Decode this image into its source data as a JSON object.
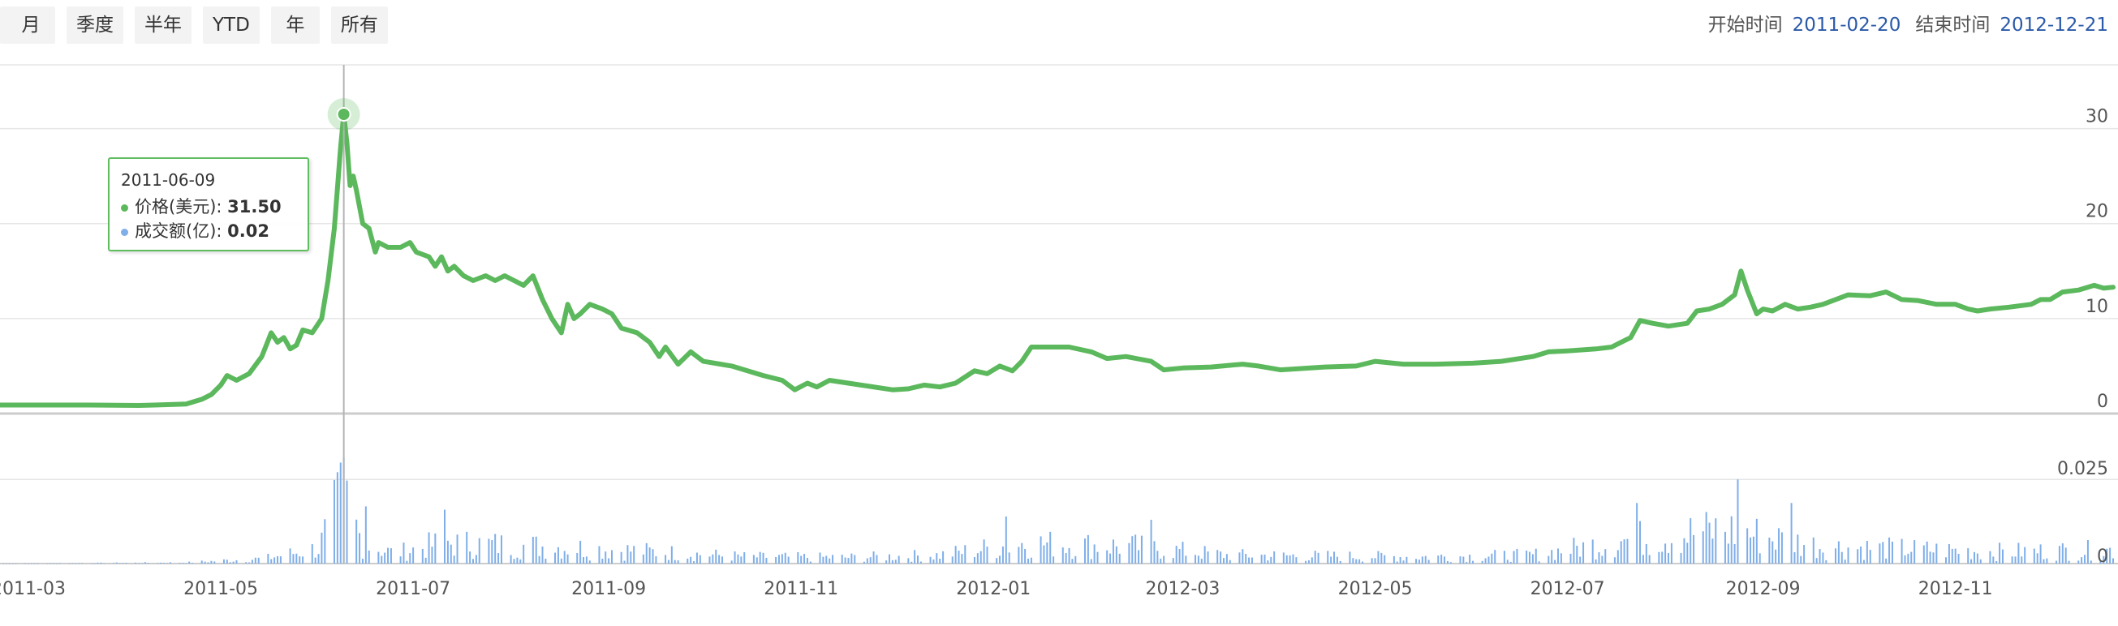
{
  "range_selector": {
    "buttons": [
      "月",
      "季度",
      "半年",
      "YTD",
      "年",
      "所有"
    ]
  },
  "date_range": {
    "start_label": "开始时间",
    "start_value": "2011-02-20",
    "end_label": "结束时间",
    "end_value": "2012-12-21"
  },
  "tooltip": {
    "date": "2011-06-09",
    "price_label": "价格(美元):",
    "price_value": "31.50",
    "volume_label": "成交额(亿):",
    "volume_value": "0.02"
  },
  "colors": {
    "price_line": "#5cb85c",
    "volume_bar": "#7faee8",
    "grid": "#e6e6e6",
    "axis_text": "#555555",
    "date_link": "#2b5aa8"
  },
  "chart_data": [
    {
      "type": "line",
      "title": "",
      "ylabel": "价格(美元)",
      "y_ticks": [
        0,
        10,
        20,
        30
      ],
      "ylim": [
        0,
        35
      ],
      "x_start": "2011-02-20",
      "x_end": "2012-12-21",
      "x_ticks": [
        "2011-03",
        "2011-05",
        "2011-07",
        "2011-09",
        "2011-11",
        "2012-01",
        "2012-03",
        "2012-05",
        "2012-07",
        "2012-09",
        "2012-11"
      ],
      "highlight": {
        "date": "2011-06-09",
        "value": 31.5
      },
      "points": [
        [
          "2011-02-20",
          0.9
        ],
        [
          "2011-03-01",
          0.9
        ],
        [
          "2011-03-20",
          0.9
        ],
        [
          "2011-04-05",
          0.85
        ],
        [
          "2011-04-10",
          0.9
        ],
        [
          "2011-04-20",
          1.0
        ],
        [
          "2011-04-25",
          1.5
        ],
        [
          "2011-04-28",
          2.0
        ],
        [
          "2011-05-01",
          3.0
        ],
        [
          "2011-05-03",
          4.0
        ],
        [
          "2011-05-06",
          3.5
        ],
        [
          "2011-05-10",
          4.2
        ],
        [
          "2011-05-14",
          6.0
        ],
        [
          "2011-05-17",
          8.5
        ],
        [
          "2011-05-19",
          7.5
        ],
        [
          "2011-05-21",
          8.0
        ],
        [
          "2011-05-23",
          6.8
        ],
        [
          "2011-05-25",
          7.2
        ],
        [
          "2011-05-27",
          8.8
        ],
        [
          "2011-05-30",
          8.5
        ],
        [
          "2011-06-02",
          10.0
        ],
        [
          "2011-06-04",
          14.0
        ],
        [
          "2011-06-06",
          19.5
        ],
        [
          "2011-06-08",
          28.0
        ],
        [
          "2011-06-09",
          31.5
        ],
        [
          "2011-06-10",
          28.5
        ],
        [
          "2011-06-11",
          24.0
        ],
        [
          "2011-06-12",
          25.0
        ],
        [
          "2011-06-13",
          23.5
        ],
        [
          "2011-06-15",
          20.0
        ],
        [
          "2011-06-17",
          19.5
        ],
        [
          "2011-06-19",
          17.0
        ],
        [
          "2011-06-20",
          18.0
        ],
        [
          "2011-06-23",
          17.5
        ],
        [
          "2011-06-27",
          17.5
        ],
        [
          "2011-06-30",
          18.0
        ],
        [
          "2011-07-02",
          17.0
        ],
        [
          "2011-07-06",
          16.5
        ],
        [
          "2011-07-08",
          15.5
        ],
        [
          "2011-07-10",
          16.5
        ],
        [
          "2011-07-12",
          15.0
        ],
        [
          "2011-07-14",
          15.5
        ],
        [
          "2011-07-17",
          14.5
        ],
        [
          "2011-07-20",
          14.0
        ],
        [
          "2011-07-24",
          14.5
        ],
        [
          "2011-07-27",
          14.0
        ],
        [
          "2011-07-30",
          14.5
        ],
        [
          "2011-08-02",
          14.0
        ],
        [
          "2011-08-05",
          13.5
        ],
        [
          "2011-08-08",
          14.5
        ],
        [
          "2011-08-11",
          12.0
        ],
        [
          "2011-08-14",
          10.0
        ],
        [
          "2011-08-17",
          8.5
        ],
        [
          "2011-08-19",
          11.5
        ],
        [
          "2011-08-21",
          10.0
        ],
        [
          "2011-08-23",
          10.5
        ],
        [
          "2011-08-26",
          11.5
        ],
        [
          "2011-08-30",
          11.0
        ],
        [
          "2011-09-02",
          10.5
        ],
        [
          "2011-09-05",
          9.0
        ],
        [
          "2011-09-10",
          8.5
        ],
        [
          "2011-09-14",
          7.5
        ],
        [
          "2011-09-17",
          6.0
        ],
        [
          "2011-09-19",
          7.0
        ],
        [
          "2011-09-23",
          5.2
        ],
        [
          "2011-09-27",
          6.5
        ],
        [
          "2011-10-01",
          5.5
        ],
        [
          "2011-10-10",
          5.0
        ],
        [
          "2011-10-20",
          4.0
        ],
        [
          "2011-10-26",
          3.5
        ],
        [
          "2011-10-30",
          2.5
        ],
        [
          "2011-11-03",
          3.2
        ],
        [
          "2011-11-06",
          2.8
        ],
        [
          "2011-11-10",
          3.5
        ],
        [
          "2011-11-20",
          3.0
        ],
        [
          "2011-11-30",
          2.5
        ],
        [
          "2011-12-05",
          2.6
        ],
        [
          "2011-12-10",
          3.0
        ],
        [
          "2011-12-15",
          2.8
        ],
        [
          "2011-12-20",
          3.2
        ],
        [
          "2011-12-26",
          4.5
        ],
        [
          "2011-12-30",
          4.2
        ],
        [
          "2012-01-03",
          5.0
        ],
        [
          "2012-01-07",
          4.5
        ],
        [
          "2012-01-10",
          5.5
        ],
        [
          "2012-01-13",
          7.0
        ],
        [
          "2012-01-17",
          7.0
        ],
        [
          "2012-01-25",
          7.0
        ],
        [
          "2012-02-01",
          6.5
        ],
        [
          "2012-02-06",
          5.8
        ],
        [
          "2012-02-12",
          6.0
        ],
        [
          "2012-02-20",
          5.5
        ],
        [
          "2012-02-24",
          4.6
        ],
        [
          "2012-03-01",
          4.8
        ],
        [
          "2012-03-10",
          4.9
        ],
        [
          "2012-03-20",
          5.2
        ],
        [
          "2012-03-25",
          5.0
        ],
        [
          "2012-04-01",
          4.6
        ],
        [
          "2012-04-15",
          4.9
        ],
        [
          "2012-04-25",
          5.0
        ],
        [
          "2012-05-01",
          5.5
        ],
        [
          "2012-05-10",
          5.2
        ],
        [
          "2012-05-20",
          5.2
        ],
        [
          "2012-06-01",
          5.3
        ],
        [
          "2012-06-10",
          5.5
        ],
        [
          "2012-06-20",
          6.0
        ],
        [
          "2012-06-25",
          6.5
        ],
        [
          "2012-07-01",
          6.6
        ],
        [
          "2012-07-10",
          6.8
        ],
        [
          "2012-07-15",
          7.0
        ],
        [
          "2012-07-18",
          7.5
        ],
        [
          "2012-07-21",
          8.0
        ],
        [
          "2012-07-24",
          9.8
        ],
        [
          "2012-07-28",
          9.5
        ],
        [
          "2012-08-02",
          9.2
        ],
        [
          "2012-08-08",
          9.5
        ],
        [
          "2012-08-11",
          10.8
        ],
        [
          "2012-08-15",
          11.0
        ],
        [
          "2012-08-19",
          11.5
        ],
        [
          "2012-08-23",
          12.5
        ],
        [
          "2012-08-25",
          15.0
        ],
        [
          "2012-08-27",
          13.0
        ],
        [
          "2012-08-30",
          10.5
        ],
        [
          "2012-09-01",
          11.0
        ],
        [
          "2012-09-04",
          10.8
        ],
        [
          "2012-09-08",
          11.5
        ],
        [
          "2012-09-12",
          11.0
        ],
        [
          "2012-09-16",
          11.2
        ],
        [
          "2012-09-20",
          11.5
        ],
        [
          "2012-09-24",
          12.0
        ],
        [
          "2012-09-28",
          12.5
        ],
        [
          "2012-10-05",
          12.4
        ],
        [
          "2012-10-10",
          12.8
        ],
        [
          "2012-10-15",
          12.0
        ],
        [
          "2012-10-20",
          11.9
        ],
        [
          "2012-10-26",
          11.5
        ],
        [
          "2012-11-01",
          11.5
        ],
        [
          "2012-11-05",
          11.0
        ],
        [
          "2012-11-08",
          10.8
        ],
        [
          "2012-11-12",
          11.0
        ],
        [
          "2012-11-18",
          11.2
        ],
        [
          "2012-11-25",
          11.5
        ],
        [
          "2012-11-28",
          12.0
        ],
        [
          "2012-12-01",
          12.0
        ],
        [
          "2012-12-05",
          12.8
        ],
        [
          "2012-12-10",
          13.0
        ],
        [
          "2012-12-15",
          13.5
        ],
        [
          "2012-12-18",
          13.2
        ],
        [
          "2012-12-21",
          13.3
        ]
      ]
    },
    {
      "type": "bar",
      "title": "",
      "ylabel": "成交额(亿)",
      "y_ticks": [
        0,
        0.025
      ],
      "ylim": [
        0,
        0.033
      ],
      "x_start": "2011-02-20",
      "x_end": "2012-12-21",
      "volume_levels": [
        [
          "2011-02-20",
          0.0
        ],
        [
          "2011-04-20",
          0.0003
        ],
        [
          "2011-05-15",
          0.0015
        ],
        [
          "2011-06-01",
          0.0045
        ],
        [
          "2011-06-09",
          0.02
        ],
        [
          "2011-06-15",
          0.006
        ],
        [
          "2011-06-25",
          0.003
        ],
        [
          "2011-07-10",
          0.006
        ],
        [
          "2011-08-15",
          0.005
        ],
        [
          "2011-09-15",
          0.0035
        ],
        [
          "2011-10-15",
          0.002
        ],
        [
          "2011-11-15",
          0.0018
        ],
        [
          "2011-12-15",
          0.0025
        ],
        [
          "2012-01-10",
          0.006
        ],
        [
          "2012-02-15",
          0.005
        ],
        [
          "2012-03-15",
          0.0025
        ],
        [
          "2012-05-15",
          0.002
        ],
        [
          "2012-06-20",
          0.0025
        ],
        [
          "2012-07-20",
          0.007
        ],
        [
          "2012-08-20",
          0.01
        ],
        [
          "2012-09-20",
          0.005
        ],
        [
          "2012-11-15",
          0.0035
        ],
        [
          "2012-12-21",
          0.004
        ]
      ],
      "peaks": [
        [
          "2011-06-05",
          0.012
        ],
        [
          "2011-06-08",
          0.03
        ],
        [
          "2011-06-12",
          0.022
        ],
        [
          "2011-06-16",
          0.017
        ],
        [
          "2011-07-11",
          0.016
        ],
        [
          "2011-08-13",
          0.012
        ],
        [
          "2012-01-05",
          0.014
        ],
        [
          "2012-02-20",
          0.013
        ],
        [
          "2012-07-23",
          0.018
        ],
        [
          "2012-08-12",
          0.016
        ],
        [
          "2012-08-24",
          0.025
        ],
        [
          "2012-09-02",
          0.018
        ],
        [
          "2012-09-10",
          0.018
        ]
      ]
    }
  ]
}
